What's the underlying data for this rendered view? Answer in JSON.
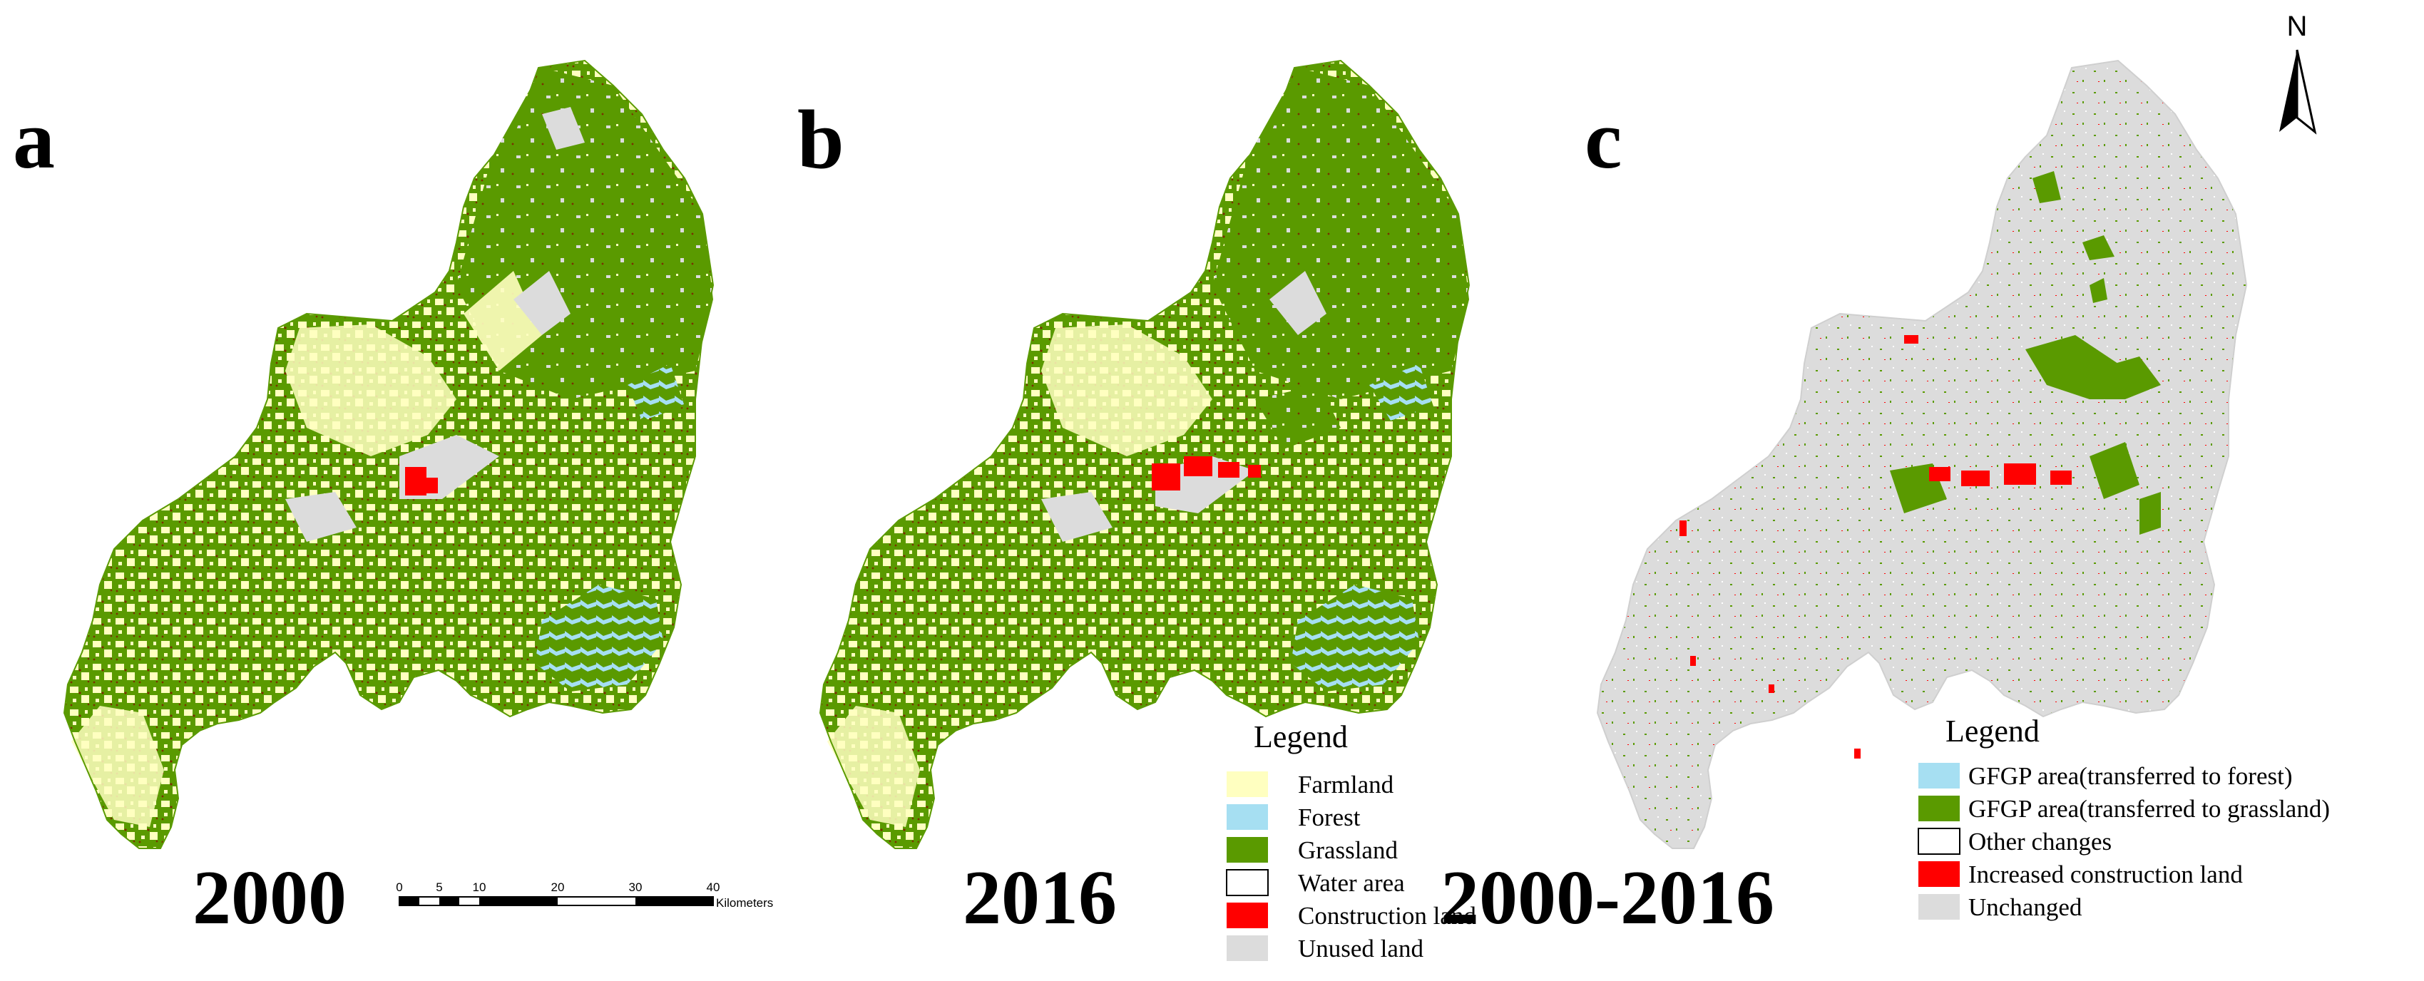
{
  "panels": [
    {
      "letter": "a",
      "year": "2000"
    },
    {
      "letter": "b",
      "year": "2016"
    },
    {
      "letter": "c",
      "year": "2000-2016"
    }
  ],
  "legend_landuse": {
    "title": "Legend",
    "items": [
      {
        "label": "Farmland",
        "color": "#ffffc0"
      },
      {
        "label": "Forest",
        "color": "#a6dff2"
      },
      {
        "label": "Grassland",
        "color": "#5a9a00"
      },
      {
        "label": "Water area",
        "color": "#ffffff"
      },
      {
        "label": "Construction land",
        "color": "#ff0000"
      },
      {
        "label": "Unused land",
        "color": "#dcdcdc"
      }
    ]
  },
  "legend_change": {
    "title": "Legend",
    "items": [
      {
        "label": "GFGP area(transferred to forest)",
        "color": "#a6dff2"
      },
      {
        "label": "GFGP area(transferred to grassland)",
        "color": "#5a9a00"
      },
      {
        "label": "Other changes",
        "color": "#ffffff"
      },
      {
        "label": "Increased construction land",
        "color": "#ff0000"
      },
      {
        "label": "Unchanged",
        "color": "#dcdcdc"
      }
    ]
  },
  "scale_bar": {
    "ticks": [
      "0",
      "5",
      "10",
      "20",
      "30",
      "40"
    ],
    "unit": "Kilometers"
  },
  "north_arrow": {
    "label": "N",
    "icon": "north-arrow-icon"
  }
}
